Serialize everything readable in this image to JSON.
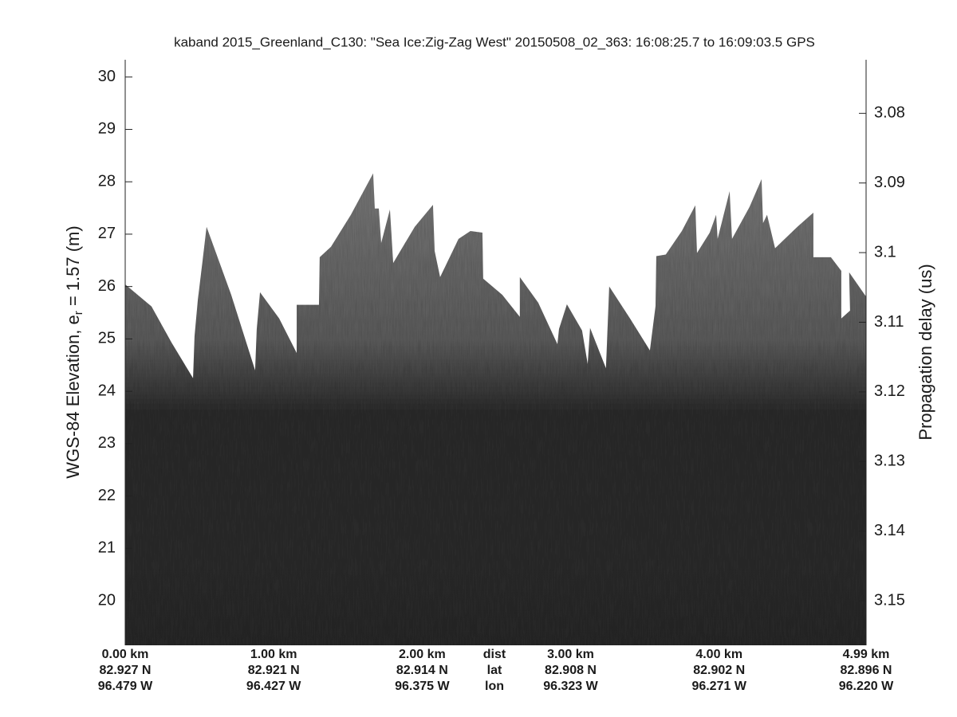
{
  "chart_data": {
    "type": "echogram",
    "title": "kaband 2015_Greenland_C130: \"Sea Ice:Zig-Zag West\"  20150508_02_363: 16:08:25.7 to 16:09:03.5 GPS",
    "y_label": "WGS-84 Elevation, e",
    "y_label_sub": "r",
    "y_label_rest": " = 1.57 (m)",
    "y2_label": "Propagation delay (us)",
    "ylim": [
      19.15,
      30.33
    ],
    "yticks": [
      20,
      21,
      22,
      23,
      24,
      25,
      26,
      27,
      28,
      29,
      30
    ],
    "y2lim": [
      3.1564,
      3.0723
    ],
    "y2ticks": [
      3.08,
      3.09,
      3.1,
      3.11,
      3.12,
      3.13,
      3.14,
      3.15
    ],
    "xlim": [
      0,
      4.99
    ],
    "xticks": [
      {
        "value": 0,
        "label": "0.00 km"
      },
      {
        "value": 1,
        "label": "1.00 km"
      },
      {
        "value": 2,
        "label": "2.00 km"
      },
      {
        "value": 3,
        "label": "3.00 km"
      },
      {
        "value": 4,
        "label": "4.00 km"
      },
      {
        "value": 4.99,
        "label": "4.99 km"
      }
    ],
    "lat_labels": [
      "82.927 N",
      "82.921 N",
      "82.914 N",
      "82.908 N",
      "82.902 N",
      "82.896 N"
    ],
    "lon_labels": [
      "96.479 W",
      "96.427 W",
      "96.375 W",
      "96.323 W",
      "96.271 W",
      "96.220 W"
    ],
    "row_labels": [
      "dist",
      "lat",
      "lon"
    ],
    "surface": {
      "km": [
        0.0,
        0.177,
        0.312,
        0.457,
        0.467,
        0.489,
        0.521,
        0.548,
        0.714,
        0.875,
        0.886,
        0.908,
        1.037,
        1.155,
        1.155,
        1.305,
        1.31,
        1.386,
        1.52,
        1.67,
        1.681,
        1.708,
        1.724,
        1.783,
        1.805,
        1.95,
        2.073,
        2.084,
        2.121,
        2.245,
        2.325,
        2.406,
        2.411,
        2.54,
        2.658,
        2.658,
        2.782,
        2.911,
        2.922,
        2.975,
        3.077,
        3.115,
        3.131,
        3.238,
        3.26,
        3.4,
        3.534,
        3.572,
        3.577,
        3.641,
        3.749,
        3.84,
        3.851,
        3.937,
        3.98,
        3.99,
        4.071,
        4.087,
        4.205,
        4.286,
        4.296,
        4.323,
        4.377,
        4.527,
        4.635,
        4.635,
        4.753,
        4.823,
        4.823,
        4.882,
        4.876,
        4.989
      ],
      "elevation": [
        26.04,
        25.62,
        24.93,
        24.25,
        25.05,
        25.74,
        26.49,
        27.14,
        25.84,
        24.4,
        25.19,
        25.89,
        25.39,
        24.73,
        25.65,
        25.65,
        26.56,
        26.76,
        27.37,
        28.16,
        27.49,
        27.49,
        26.83,
        27.47,
        26.45,
        27.14,
        27.56,
        26.68,
        26.18,
        26.91,
        27.06,
        27.03,
        26.15,
        25.84,
        25.42,
        26.18,
        25.69,
        24.9,
        25.19,
        25.66,
        25.16,
        24.52,
        25.21,
        24.44,
        26.0,
        25.39,
        24.78,
        25.63,
        26.58,
        26.61,
        27.06,
        27.55,
        26.64,
        27.03,
        27.37,
        26.91,
        27.82,
        26.91,
        27.52,
        28.05,
        27.21,
        27.37,
        26.73,
        27.14,
        27.41,
        26.56,
        26.56,
        26.3,
        25.39,
        25.54,
        26.27,
        25.81
      ]
    }
  }
}
